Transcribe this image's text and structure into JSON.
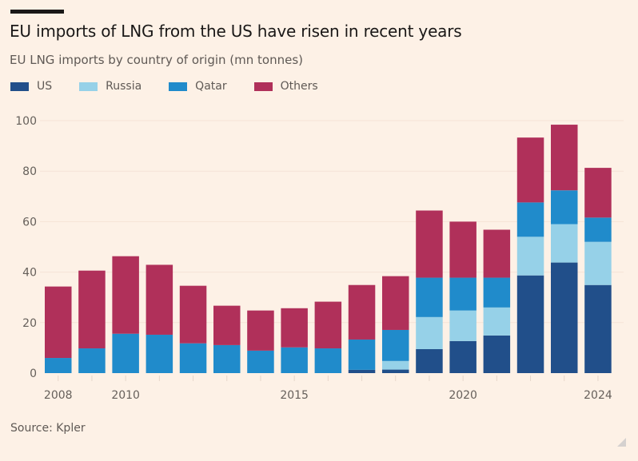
{
  "header": {
    "title": "EU imports of LNG from the US have risen in recent years",
    "subtitle": "EU LNG imports by country of origin (mn tonnes)"
  },
  "legend": [
    {
      "name": "US",
      "color": "#214f8a"
    },
    {
      "name": "Russia",
      "color": "#96d1e8"
    },
    {
      "name": "Qatar",
      "color": "#208bcb"
    },
    {
      "name": "Others",
      "color": "#b0305a"
    }
  ],
  "footer": {
    "source": "Source: Kpler"
  },
  "chart_data": {
    "type": "bar",
    "stacked": true,
    "title": "EU imports of LNG from the US have risen in recent years",
    "subtitle": "EU LNG imports by country of origin (mn tonnes)",
    "xlabel": "",
    "ylabel": "",
    "ylim": [
      0,
      100
    ],
    "yticks": [
      0,
      20,
      40,
      60,
      80,
      100
    ],
    "grid": true,
    "legend_position": "top-left",
    "categories": [
      2008,
      2009,
      2010,
      2011,
      2012,
      2013,
      2014,
      2015,
      2016,
      2017,
      2018,
      2019,
      2020,
      2021,
      2022,
      2023,
      2024
    ],
    "xtick_labels": [
      {
        "year": 2008,
        "label": "2008"
      },
      {
        "year": 2010,
        "label": "2010"
      },
      {
        "year": 2015,
        "label": "2015"
      },
      {
        "year": 2020,
        "label": "2020"
      },
      {
        "year": 2024,
        "label": "2024"
      }
    ],
    "series": [
      {
        "name": "US",
        "color": "#214f8a",
        "values": [
          0,
          0,
          0,
          0,
          0,
          0,
          0,
          0,
          0,
          1.3,
          1.4,
          9.5,
          12.7,
          14.9,
          38.7,
          43.8,
          34.9
        ]
      },
      {
        "name": "Russia",
        "color": "#96d1e8",
        "values": [
          0,
          0,
          0,
          0,
          0,
          0,
          0,
          0,
          0,
          0,
          3.4,
          12.7,
          12.1,
          11.1,
          15.3,
          15.2,
          17.1
        ]
      },
      {
        "name": "Qatar",
        "color": "#208bcb",
        "values": [
          6.0,
          9.8,
          15.6,
          15.2,
          11.8,
          11.1,
          8.9,
          10.2,
          9.8,
          12.0,
          12.3,
          15.6,
          13.0,
          11.8,
          13.6,
          13.4,
          9.6
        ]
      },
      {
        "name": "Others",
        "color": "#b0305a",
        "values": [
          28.3,
          30.8,
          30.7,
          27.7,
          22.8,
          15.6,
          15.9,
          15.5,
          18.5,
          21.6,
          21.3,
          26.6,
          22.2,
          19.0,
          25.7,
          26.0,
          19.7
        ]
      }
    ]
  }
}
